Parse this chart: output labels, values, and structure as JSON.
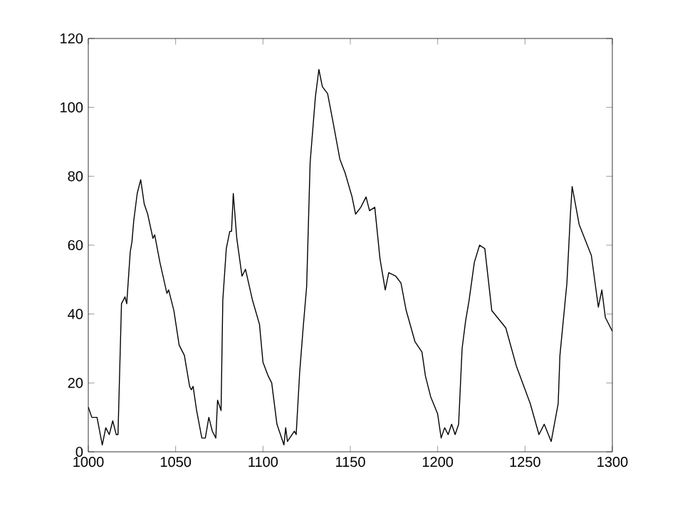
{
  "chart_data": {
    "type": "line",
    "xlim": [
      1000,
      1300
    ],
    "ylim": [
      0,
      120
    ],
    "xticks": [
      1000,
      1050,
      1100,
      1150,
      1200,
      1250,
      1300
    ],
    "yticks": [
      0,
      20,
      40,
      60,
      80,
      100,
      120
    ],
    "grid": false,
    "marker": "none",
    "line_style": "solid",
    "series": [
      {
        "color": "#000000",
        "x": [
          1000,
          1002,
          1005,
          1008,
          1010,
          1012,
          1014,
          1016,
          1017,
          1019,
          1021,
          1022,
          1024,
          1025,
          1026,
          1028,
          1030,
          1032,
          1034,
          1037,
          1038,
          1041,
          1045,
          1046,
          1049,
          1052,
          1055,
          1058,
          1059,
          1060,
          1062,
          1065,
          1067,
          1069,
          1071,
          1073,
          1074,
          1076,
          1077,
          1079,
          1081,
          1082,
          1083,
          1085,
          1088,
          1090,
          1094,
          1098,
          1100,
          1103,
          1105,
          1108,
          1110,
          1112,
          1113,
          1114,
          1118,
          1119,
          1121,
          1123,
          1125,
          1127,
          1130,
          1132,
          1134,
          1137,
          1140,
          1144,
          1147,
          1151,
          1153,
          1156,
          1159,
          1161,
          1164,
          1167,
          1170,
          1172,
          1176,
          1179,
          1182,
          1187,
          1191,
          1193,
          1196,
          1200,
          1202,
          1204,
          1206,
          1208,
          1210,
          1212,
          1214,
          1216,
          1218,
          1221,
          1224,
          1227,
          1231,
          1239,
          1245,
          1253,
          1258,
          1261,
          1265,
          1269,
          1270,
          1274,
          1276,
          1277,
          1281,
          1288,
          1292,
          1294,
          1296,
          1300
        ],
        "values": [
          13,
          10,
          10,
          2,
          7,
          5,
          9,
          5,
          5,
          43,
          45,
          43,
          58,
          61,
          67,
          75,
          79,
          72,
          69,
          62,
          63,
          55,
          46,
          47,
          41,
          31,
          28,
          19,
          18,
          19,
          12,
          4,
          4,
          10,
          6,
          4,
          15,
          12,
          44,
          59,
          64,
          64,
          75,
          62,
          51,
          53,
          44,
          37,
          26,
          22,
          20,
          8,
          5,
          2,
          7,
          3,
          6,
          5,
          23,
          36,
          48,
          84,
          103,
          111,
          106,
          104,
          96,
          85,
          81,
          74,
          69,
          71,
          74,
          70,
          71,
          56,
          47,
          52,
          51,
          49,
          41,
          32,
          29,
          22,
          16,
          11,
          4,
          7,
          5,
          8,
          5,
          8,
          30,
          38,
          44,
          55,
          60,
          59,
          41,
          36,
          25,
          14,
          5,
          8,
          3,
          14,
          28,
          49,
          69,
          77,
          66,
          57,
          42,
          47,
          39,
          35
        ]
      }
    ]
  }
}
